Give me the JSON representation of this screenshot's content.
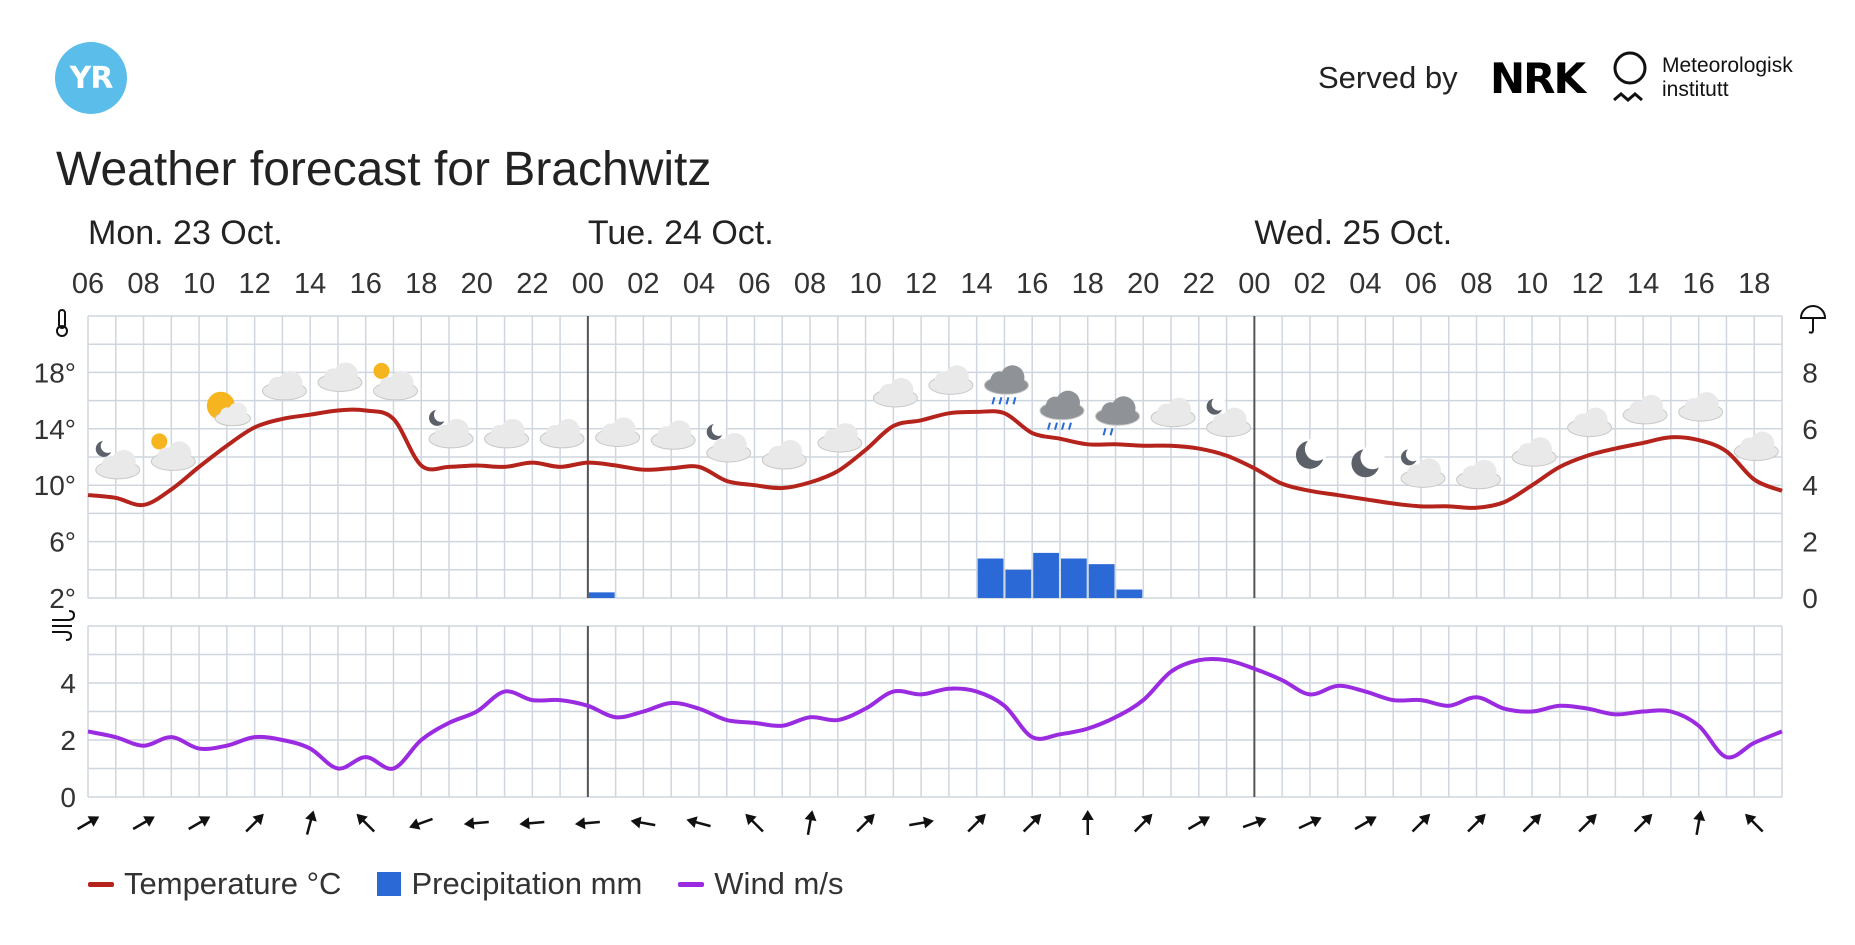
{
  "header": {
    "logo_text": "YR",
    "served_by": "Served by",
    "nrk": "NRK",
    "met": "Meteorologisk\ninstitutt"
  },
  "title": "Weather forecast for Brachwitz",
  "colors": {
    "temperature": "#b5241c",
    "precipitation": "#2b69d6",
    "wind": "#9b2be0",
    "grid": "#cfd6df",
    "logo": "#5bbde9"
  },
  "legend": [
    {
      "label": "Temperature °C",
      "color": "#b5241c",
      "kind": "line"
    },
    {
      "label": "Precipitation mm",
      "color": "#2b69d6",
      "kind": "box"
    },
    {
      "label": "Wind m/s",
      "color": "#9b2be0",
      "kind": "line"
    }
  ],
  "chart_data": {
    "type": "line",
    "days": [
      {
        "label": "Mon. 23 Oct.",
        "start_hour": 0
      },
      {
        "label": "Tue. 24 Oct.",
        "start_hour": 18
      },
      {
        "label": "Wed. 25 Oct.",
        "start_hour": 42
      }
    ],
    "hour_labels": [
      "06",
      "08",
      "10",
      "12",
      "14",
      "16",
      "18",
      "20",
      "22",
      "00",
      "02",
      "04",
      "06",
      "08",
      "10",
      "12",
      "14",
      "16",
      "18",
      "20",
      "22",
      "00",
      "02",
      "04",
      "06",
      "08",
      "10",
      "12",
      "14",
      "16",
      "18"
    ],
    "hours_total": 61,
    "temperature": {
      "name": "Temperature °C",
      "ticks": [
        2,
        6,
        10,
        14,
        18
      ],
      "ylim": [
        2,
        22
      ],
      "values": [
        9.3,
        9.1,
        8.6,
        9.7,
        11.3,
        12.8,
        14.1,
        14.7,
        15.0,
        15.3,
        15.3,
        14.7,
        11.4,
        11.3,
        11.4,
        11.3,
        11.6,
        11.3,
        11.6,
        11.4,
        11.1,
        11.2,
        11.3,
        10.3,
        10.0,
        9.8,
        10.2,
        11.0,
        12.5,
        14.2,
        14.6,
        15.1,
        15.2,
        15.1,
        13.7,
        13.3,
        12.9,
        12.9,
        12.8,
        12.8,
        12.6,
        12.1,
        11.2,
        10.1,
        9.6,
        9.3,
        9.0,
        8.7,
        8.5,
        8.5,
        8.4,
        8.8,
        10.0,
        11.3,
        12.1,
        12.6,
        13.0,
        13.4,
        13.2,
        12.4,
        10.4,
        9.6
      ]
    },
    "precipitation": {
      "name": "Precipitation mm",
      "ticks": [
        0,
        2,
        4,
        6,
        8
      ],
      "ylim": [
        0,
        10
      ],
      "bars": [
        {
          "hour": 18,
          "value": 0.2
        },
        {
          "hour": 32,
          "value": 1.4
        },
        {
          "hour": 33,
          "value": 1.0
        },
        {
          "hour": 34,
          "value": 1.6
        },
        {
          "hour": 35,
          "value": 1.4
        },
        {
          "hour": 36,
          "value": 1.2
        },
        {
          "hour": 37,
          "value": 0.3
        }
      ]
    },
    "wind": {
      "name": "Wind m/s",
      "ticks": [
        0,
        2,
        4
      ],
      "ylim": [
        0,
        6
      ],
      "values": [
        2.3,
        2.1,
        1.8,
        2.1,
        1.7,
        1.8,
        2.1,
        2.0,
        1.7,
        1.0,
        1.4,
        1.0,
        2.0,
        2.6,
        3.0,
        3.7,
        3.4,
        3.4,
        3.2,
        2.8,
        3.0,
        3.3,
        3.1,
        2.7,
        2.6,
        2.5,
        2.8,
        2.7,
        3.1,
        3.7,
        3.6,
        3.8,
        3.7,
        3.2,
        2.1,
        2.2,
        2.4,
        2.8,
        3.4,
        4.4,
        4.8,
        4.8,
        4.5,
        4.1,
        3.6,
        3.9,
        3.7,
        3.4,
        3.4,
        3.2,
        3.5,
        3.1,
        3.0,
        3.2,
        3.1,
        2.9,
        3.0,
        3.0,
        2.5,
        1.4,
        1.9,
        2.3
      ]
    },
    "wind_directions_deg": [
      60,
      60,
      60,
      45,
      15,
      -45,
      -110,
      -95,
      -95,
      -95,
      -80,
      -75,
      -45,
      10,
      45,
      80,
      45,
      45,
      0,
      45,
      60,
      70,
      65,
      60,
      45,
      45,
      45,
      45,
      45,
      10,
      -45
    ],
    "symbols": [
      {
        "hour": 0,
        "type": "night-partly-cloudy"
      },
      {
        "hour": 2,
        "type": "day-partly-cloudy"
      },
      {
        "hour": 4,
        "type": "fair"
      },
      {
        "hour": 6,
        "type": "cloudy"
      },
      {
        "hour": 8,
        "type": "cloudy"
      },
      {
        "hour": 10,
        "type": "day-partly-cloudy"
      },
      {
        "hour": 12,
        "type": "night-partly-cloudy"
      },
      {
        "hour": 14,
        "type": "cloudy"
      },
      {
        "hour": 16,
        "type": "cloudy"
      },
      {
        "hour": 18,
        "type": "cloudy"
      },
      {
        "hour": 20,
        "type": "cloudy"
      },
      {
        "hour": 22,
        "type": "night-partly-cloudy"
      },
      {
        "hour": 24,
        "type": "cloudy"
      },
      {
        "hour": 26,
        "type": "cloudy"
      },
      {
        "hour": 28,
        "type": "cloudy"
      },
      {
        "hour": 30,
        "type": "cloudy"
      },
      {
        "hour": 32,
        "type": "rain"
      },
      {
        "hour": 34,
        "type": "rain"
      },
      {
        "hour": 36,
        "type": "light-rain"
      },
      {
        "hour": 38,
        "type": "cloudy"
      },
      {
        "hour": 40,
        "type": "night-partly-cloudy"
      },
      {
        "hour": 43,
        "type": "clear-night"
      },
      {
        "hour": 45,
        "type": "clear-night"
      },
      {
        "hour": 47,
        "type": "night-partly-cloudy"
      },
      {
        "hour": 49,
        "type": "cloudy"
      },
      {
        "hour": 51,
        "type": "cloudy"
      },
      {
        "hour": 53,
        "type": "cloudy"
      },
      {
        "hour": 55,
        "type": "cloudy"
      },
      {
        "hour": 57,
        "type": "cloudy"
      },
      {
        "hour": 59,
        "type": "cloudy"
      }
    ],
    "grid": true
  }
}
